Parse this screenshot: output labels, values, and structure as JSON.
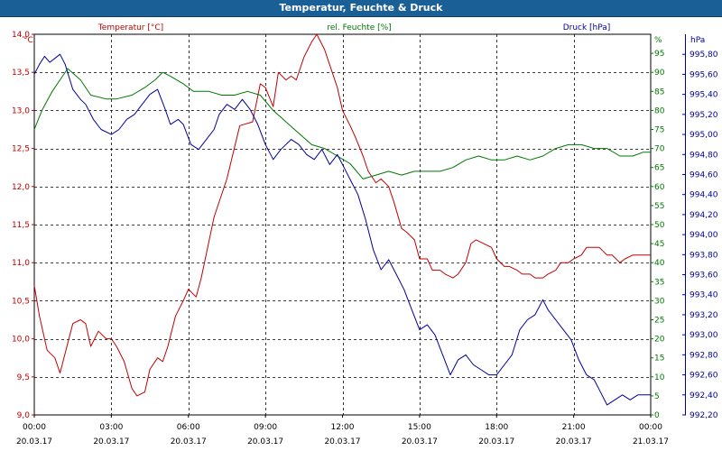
{
  "window_title": "Temperatur, Feuchte & Druck",
  "chart_data": {
    "type": "line",
    "title": "Temperatur, Feuchte & Druck",
    "grid": true,
    "colors": {
      "temperature": "#c00000",
      "humidity": "#007800",
      "pressure": "#00009c",
      "grid": "#000000"
    },
    "x_axis": {
      "range": [
        "2017-03-20 00:00",
        "2017-03-21 00:00"
      ],
      "tick_labels": [
        {
          "time": "00:00",
          "date": "20.03.17"
        },
        {
          "time": "03:00",
          "date": "20.03.17"
        },
        {
          "time": "06:00",
          "date": "20.03.17"
        },
        {
          "time": "09:00",
          "date": "20.03.17"
        },
        {
          "time": "12:00",
          "date": "20.03.17"
        },
        {
          "time": "15:00",
          "date": "20.03.17"
        },
        {
          "time": "18:00",
          "date": "20.03.17"
        },
        {
          "time": "21:00",
          "date": "20.03.17"
        },
        {
          "time": "00:00",
          "date": "21.03.17"
        }
      ]
    },
    "axes": {
      "temperature": {
        "label": "Temperatur [°C]",
        "unit": "°C",
        "range": [
          9.0,
          14.0
        ],
        "ticks": [
          "14,0",
          "13,5",
          "13,0",
          "12,5",
          "12,0",
          "11,5",
          "11,0",
          "10,5",
          "10,0",
          "9,5",
          "9,0"
        ]
      },
      "humidity": {
        "label": "rel. Feuchte [%]",
        "unit": "%",
        "range": [
          0,
          100
        ],
        "ticks": [
          "95",
          "90",
          "85",
          "80",
          "75",
          "70",
          "65",
          "60",
          "55",
          "50",
          "45",
          "40",
          "35",
          "30",
          "25",
          "20",
          "15",
          "10",
          "5",
          "0"
        ]
      },
      "pressure": {
        "label": "Druck [hPa]",
        "unit": "hPa",
        "range": [
          992.2,
          996.0
        ],
        "ticks": [
          "995,80",
          "995,60",
          "995,40",
          "995,20",
          "995,00",
          "994,80",
          "994,60",
          "994,40",
          "994,20",
          "994,00",
          "993,80",
          "993,60",
          "993,40",
          "993,20",
          "993,00",
          "992,80",
          "992,60",
          "992,40",
          "992,20"
        ]
      }
    },
    "series": [
      {
        "name": "Temperatur [°C]",
        "key": "temperature",
        "x": [
          0,
          0.2,
          0.5,
          0.8,
          1.0,
          1.5,
          1.8,
          2.0,
          2.2,
          2.5,
          2.8,
          3.0,
          3.2,
          3.5,
          3.8,
          4.0,
          4.3,
          4.5,
          4.8,
          5.0,
          5.2,
          5.5,
          5.8,
          6.0,
          6.3,
          6.5,
          7.0,
          7.5,
          8.0,
          8.5,
          8.8,
          9.0,
          9.3,
          9.5,
          9.8,
          10.0,
          10.2,
          10.5,
          10.8,
          11.0,
          11.3,
          11.5,
          11.8,
          12.0,
          12.3,
          12.5,
          12.8,
          13.0,
          13.3,
          13.5,
          13.8,
          14.0,
          14.3,
          14.5,
          14.8,
          15.0,
          15.3,
          15.5,
          15.8,
          16.0,
          16.3,
          16.5,
          16.8,
          17.0,
          17.2,
          17.5,
          17.8,
          18.0,
          18.3,
          18.5,
          18.8,
          19.0,
          19.3,
          19.5,
          19.8,
          20.0,
          20.3,
          20.5,
          20.8,
          21.0,
          21.3,
          21.5,
          21.8,
          22.0,
          22.3,
          22.5,
          22.8,
          23.0,
          23.3,
          23.5,
          23.7,
          24.0
        ],
        "values": [
          10.7,
          10.3,
          9.85,
          9.75,
          9.55,
          10.2,
          10.25,
          10.2,
          9.9,
          10.1,
          10.0,
          10.0,
          9.9,
          9.7,
          9.35,
          9.25,
          9.3,
          9.6,
          9.75,
          9.7,
          9.9,
          10.3,
          10.5,
          10.65,
          10.55,
          10.8,
          11.6,
          12.1,
          12.8,
          12.85,
          13.35,
          13.3,
          13.05,
          13.5,
          13.4,
          13.45,
          13.4,
          13.7,
          13.9,
          14.0,
          13.8,
          13.6,
          13.3,
          13.0,
          12.8,
          12.65,
          12.4,
          12.2,
          12.05,
          12.1,
          12.0,
          11.8,
          11.45,
          11.4,
          11.3,
          11.05,
          11.05,
          10.9,
          10.9,
          10.85,
          10.8,
          10.85,
          11.0,
          11.25,
          11.3,
          11.25,
          11.2,
          11.05,
          10.95,
          10.95,
          10.9,
          10.85,
          10.85,
          10.8,
          10.8,
          10.85,
          10.9,
          11.0,
          11.0,
          11.05,
          11.1,
          11.2,
          11.2,
          11.2,
          11.1,
          11.1,
          11.0,
          11.05,
          11.1,
          11.1,
          11.1,
          11.1
        ]
      },
      {
        "name": "rel. Feuchte [%]",
        "key": "humidity",
        "x": [
          0,
          0.3,
          0.7,
          1.0,
          1.3,
          1.8,
          2.2,
          2.8,
          3.2,
          3.8,
          4.3,
          4.7,
          5.0,
          5.3,
          5.8,
          6.2,
          6.8,
          7.3,
          7.8,
          8.3,
          8.8,
          9.3,
          9.8,
          10.3,
          10.8,
          11.3,
          11.8,
          12.3,
          12.8,
          13.3,
          13.8,
          14.3,
          14.8,
          15.3,
          15.8,
          16.3,
          16.8,
          17.3,
          17.8,
          18.3,
          18.8,
          19.3,
          19.8,
          20.3,
          20.8,
          21.3,
          21.8,
          22.3,
          22.8,
          23.3,
          23.7,
          24.0
        ],
        "values": [
          75,
          80,
          85,
          88,
          91,
          88,
          84,
          83,
          83,
          84,
          86,
          88,
          90,
          89,
          87,
          85,
          85,
          84,
          84,
          85,
          84,
          80,
          77,
          74,
          71,
          70,
          68,
          66,
          62,
          63,
          64,
          63,
          64,
          64,
          64,
          65,
          67,
          68,
          67,
          67,
          68,
          67,
          68,
          70,
          71,
          71,
          70,
          70,
          68,
          68,
          69,
          69
        ]
      },
      {
        "name": "Druck [hPa]",
        "key": "pressure",
        "x": [
          0,
          0.2,
          0.4,
          0.6,
          0.8,
          1.0,
          1.2,
          1.5,
          1.8,
          2.0,
          2.3,
          2.6,
          3.0,
          3.3,
          3.6,
          3.9,
          4.2,
          4.5,
          4.8,
          5.1,
          5.3,
          5.6,
          5.8,
          6.1,
          6.4,
          6.7,
          7.0,
          7.2,
          7.5,
          7.8,
          8.1,
          8.4,
          8.7,
          9.0,
          9.3,
          9.6,
          10.0,
          10.3,
          10.6,
          10.9,
          11.2,
          11.5,
          11.8,
          12.0,
          12.3,
          12.6,
          12.9,
          13.2,
          13.5,
          13.8,
          14.1,
          14.4,
          14.7,
          15.0,
          15.3,
          15.6,
          15.9,
          16.2,
          16.5,
          16.8,
          17.1,
          17.4,
          17.7,
          18.0,
          18.3,
          18.6,
          18.9,
          19.2,
          19.5,
          19.8,
          20.0,
          20.3,
          20.6,
          20.9,
          21.2,
          21.5,
          21.8,
          22.0,
          22.3,
          22.6,
          22.9,
          23.2,
          23.5,
          23.8,
          24.0
        ],
        "values": [
          995.6,
          995.7,
          995.78,
          995.72,
          995.76,
          995.8,
          995.7,
          995.45,
          995.35,
          995.3,
          995.15,
          995.05,
          995.0,
          995.05,
          995.15,
          995.2,
          995.3,
          995.4,
          995.45,
          995.25,
          995.1,
          995.15,
          995.1,
          994.9,
          994.85,
          994.95,
          995.05,
          995.2,
          995.3,
          995.25,
          995.35,
          995.25,
          995.1,
          994.9,
          994.75,
          994.85,
          994.95,
          994.9,
          994.8,
          994.75,
          994.85,
          994.7,
          994.8,
          994.7,
          994.55,
          994.4,
          994.15,
          993.85,
          993.65,
          993.75,
          993.6,
          993.45,
          993.25,
          993.05,
          993.1,
          993.0,
          992.8,
          992.6,
          992.75,
          992.8,
          992.7,
          992.65,
          992.6,
          992.6,
          992.7,
          992.8,
          993.05,
          993.15,
          993.2,
          993.35,
          993.25,
          993.15,
          993.05,
          992.95,
          992.75,
          992.6,
          992.55,
          992.45,
          992.3,
          992.35,
          992.4,
          992.35,
          992.4,
          992.4,
          992.4
        ]
      }
    ]
  }
}
